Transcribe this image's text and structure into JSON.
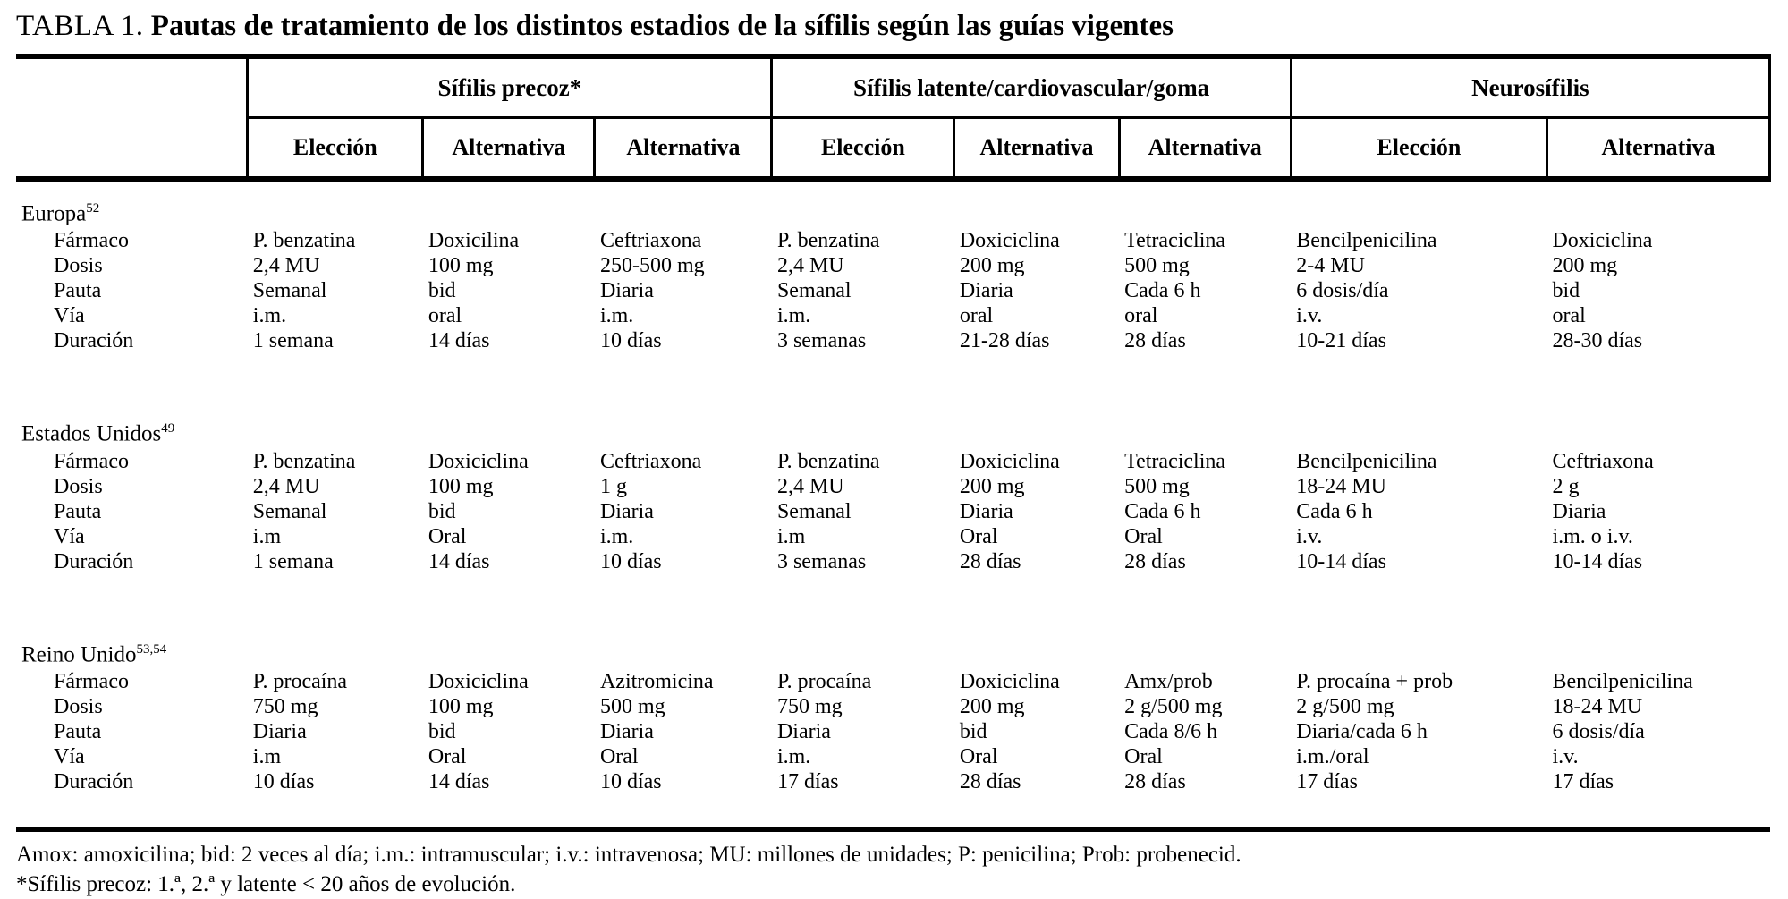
{
  "colors": {
    "text": "#000000",
    "background": "#ffffff"
  },
  "title": {
    "label": "TABLA 1.",
    "text": "Pautas de tratamiento de los distintos estadios de la sífilis según las guías vigentes"
  },
  "table": {
    "groups": [
      {
        "label": "Sífilis precoz*"
      },
      {
        "label": "Sífilis latente/cardiovascular/goma"
      },
      {
        "label": "Neurosífilis"
      }
    ],
    "subheaders": [
      "Elección",
      "Alternativa",
      "Alternativa",
      "Elección",
      "Alternativa",
      "Alternativa",
      "Elección",
      "Alternativa"
    ],
    "sections": [
      {
        "name": "Europa",
        "ref": "52",
        "rows": [
          {
            "label": "Fármaco",
            "values": [
              "P. benzatina",
              "Doxicilina",
              "Ceftriaxona",
              "P. benzatina",
              "Doxiciclina",
              "Tetraciclina",
              "Bencilpenicilina",
              "Doxiciclina"
            ]
          },
          {
            "label": "Dosis",
            "values": [
              "2,4 MU",
              "100 mg",
              "250-500 mg",
              "2,4 MU",
              "200 mg",
              "500 mg",
              "2-4 MU",
              "200 mg"
            ]
          },
          {
            "label": "Pauta",
            "values": [
              "Semanal",
              "bid",
              "Diaria",
              "Semanal",
              "Diaria",
              "Cada 6 h",
              "6 dosis/día",
              "bid"
            ]
          },
          {
            "label": "Vía",
            "values": [
              "i.m.",
              "oral",
              "i.m.",
              "i.m.",
              "oral",
              "oral",
              "i.v.",
              "oral"
            ]
          },
          {
            "label": "Duración",
            "values": [
              "1 semana",
              "14 días",
              "10 días",
              "3 semanas",
              "21-28 días",
              "28 días",
              "10-21 días",
              "28-30 días"
            ]
          }
        ]
      },
      {
        "name": "Estados Unidos",
        "ref": "49",
        "rows": [
          {
            "label": "Fármaco",
            "values": [
              "P. benzatina",
              "Doxiciclina",
              "Ceftriaxona",
              "P. benzatina",
              "Doxiciclina",
              "Tetraciclina",
              "Bencilpenicilina",
              "Ceftriaxona"
            ]
          },
          {
            "label": "Dosis",
            "values": [
              "2,4 MU",
              "100 mg",
              "1 g",
              "2,4 MU",
              "200 mg",
              "500 mg",
              "18-24 MU",
              "2 g"
            ]
          },
          {
            "label": "Pauta",
            "values": [
              "Semanal",
              "bid",
              "Diaria",
              "Semanal",
              "Diaria",
              "Cada 6 h",
              "Cada 6 h",
              "Diaria"
            ]
          },
          {
            "label": "Vía",
            "values": [
              "i.m",
              "Oral",
              "i.m.",
              "i.m",
              "Oral",
              "Oral",
              "i.v.",
              "i.m. o i.v."
            ]
          },
          {
            "label": "Duración",
            "values": [
              "1 semana",
              "14 días",
              "10 días",
              "3 semanas",
              "28 días",
              "28 días",
              "10-14 días",
              "10-14 días"
            ]
          }
        ]
      },
      {
        "name": "Reino Unido",
        "ref": "53,54",
        "rows": [
          {
            "label": "Fármaco",
            "values": [
              "P. procaína",
              "Doxiciclina",
              "Azitromicina",
              "P. procaína",
              "Doxiciclina",
              "Amx/prob",
              "P. procaína + prob",
              "Bencilpenicilina"
            ]
          },
          {
            "label": "Dosis",
            "values": [
              "750 mg",
              "100 mg",
              "500 mg",
              "750 mg",
              "200 mg",
              "2 g/500 mg",
              "2 g/500 mg",
              "18-24 MU"
            ]
          },
          {
            "label": "Pauta",
            "values": [
              "Diaria",
              "bid",
              "Diaria",
              "Diaria",
              "bid",
              "Cada 8/6 h",
              "Diaria/cada 6 h",
              "6 dosis/día"
            ]
          },
          {
            "label": "Vía",
            "values": [
              "i.m",
              "Oral",
              "Oral",
              "i.m.",
              "Oral",
              "Oral",
              "i.m./oral",
              "i.v."
            ]
          },
          {
            "label": "Duración",
            "values": [
              "10 días",
              "14 días",
              "10 días",
              "17 días",
              "28 días",
              "28 días",
              "17 días",
              "17 días"
            ]
          }
        ]
      }
    ]
  },
  "footnotes": [
    "Amox: amoxicilina; bid: 2 veces al día; i.m.: intramuscular; i.v.: intravenosa; MU: millones de unidades; P: penicilina; Prob: probenecid.",
    "*Sífilis precoz: 1.ª, 2.ª y latente < 20 años de evolución."
  ]
}
